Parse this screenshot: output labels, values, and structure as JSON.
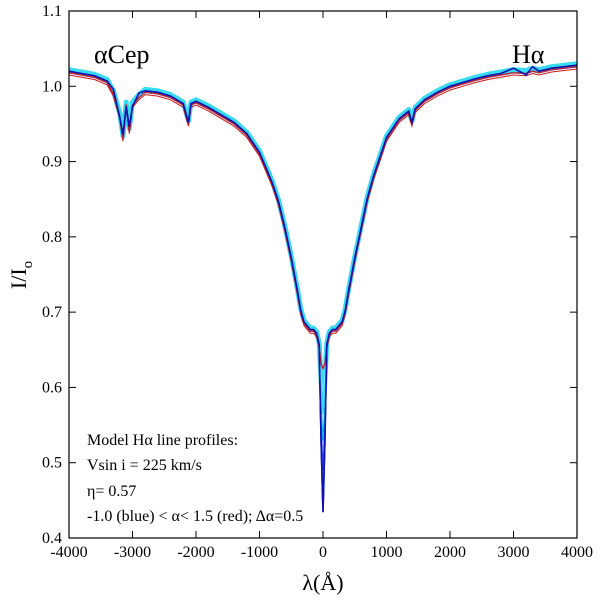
{
  "chart_data": {
    "type": "line",
    "title": "",
    "xlabel": "λ(Å)",
    "ylabel": "I/I_o",
    "xlim": [
      -4000,
      4000
    ],
    "ylim": [
      0.4,
      1.1
    ],
    "x_ticks": [
      -4000,
      -3000,
      -2000,
      -1000,
      0,
      1000,
      2000,
      3000,
      4000
    ],
    "x_tick_labels": [
      "-4000",
      "-3000",
      "-2000",
      "-1000",
      "0",
      "1000",
      "2000",
      "3000",
      "4000"
    ],
    "y_ticks": [
      0.4,
      0.5,
      0.6,
      0.7,
      0.8,
      0.9,
      1.0,
      1.1
    ],
    "y_tick_labels": [
      "0.4",
      "0.5",
      "0.6",
      "0.7",
      "0.8",
      "0.9",
      "1.0",
      "1.1"
    ],
    "grid": false,
    "corner_labels": {
      "left": "αCep",
      "right": "Hα"
    },
    "annotation_lines": [
      "Model Hα line profiles:",
      "Vsin i = 225 km/s",
      "η= 0.57",
      "-1.0 (blue) < α< 1.5 (red); Δα=0.5"
    ],
    "profile": {
      "x": [
        -4000,
        -3800,
        -3600,
        -3400,
        -3300,
        -3200,
        -3150,
        -3100,
        -3050,
        -3000,
        -2900,
        -2800,
        -2600,
        -2400,
        -2200,
        -2120,
        -2080,
        -2000,
        -1800,
        -1600,
        -1400,
        -1200,
        -1000,
        -900,
        -800,
        -700,
        -600,
        -500,
        -400,
        -350,
        -300,
        -250,
        -200,
        -150,
        -100,
        -60,
        -30,
        0,
        30,
        60,
        100,
        150,
        200,
        250,
        300,
        350,
        400,
        500,
        600,
        700,
        800,
        900,
        1000,
        1200,
        1350,
        1400,
        1450,
        1600,
        1800,
        2000,
        2200,
        2400,
        2600,
        2800,
        3000,
        3200,
        3300,
        3400,
        3600,
        3800,
        4000
      ],
      "y": [
        1.018,
        1.015,
        1.012,
        1.005,
        0.99,
        0.96,
        0.93,
        0.975,
        0.94,
        0.975,
        0.985,
        0.992,
        0.99,
        0.985,
        0.975,
        0.95,
        0.975,
        0.978,
        0.97,
        0.96,
        0.95,
        0.935,
        0.91,
        0.89,
        0.87,
        0.845,
        0.81,
        0.77,
        0.725,
        0.7,
        0.685,
        0.68,
        0.675,
        0.675,
        0.67,
        0.655,
        0.64,
        0.625,
        0.64,
        0.655,
        0.67,
        0.675,
        0.675,
        0.68,
        0.685,
        0.7,
        0.725,
        0.77,
        0.81,
        0.85,
        0.88,
        0.905,
        0.93,
        0.955,
        0.965,
        0.95,
        0.968,
        0.98,
        0.99,
        0.998,
        1.003,
        1.008,
        1.012,
        1.015,
        1.018,
        1.017,
        1.02,
        1.018,
        1.022,
        1.024,
        1.026
      ]
    },
    "core_minima": [
      {
        "name": "alpha -1.0",
        "color": "#1010b0",
        "value": 0.435
      },
      {
        "name": "alpha -0.5",
        "color": "#2a4cf0",
        "value": 0.49
      },
      {
        "name": "alpha 0.0",
        "color": "#00b4e0",
        "value": 0.53
      },
      {
        "name": "alpha 0.5",
        "color": "#3ad8f4",
        "value": 0.565
      },
      {
        "name": "alpha 1.0",
        "color": "#66e4f8",
        "value": 0.595
      },
      {
        "name": "alpha 1.5",
        "color": "#d01818",
        "value": 0.625
      }
    ],
    "series": [
      {
        "name": "alpha 1.5 (red)",
        "color": "#d01818"
      },
      {
        "name": "intermediate (cyan)",
        "color": "#22d6f0"
      },
      {
        "name": "alpha -1.0 (blue)",
        "color": "#1010b0"
      }
    ]
  }
}
